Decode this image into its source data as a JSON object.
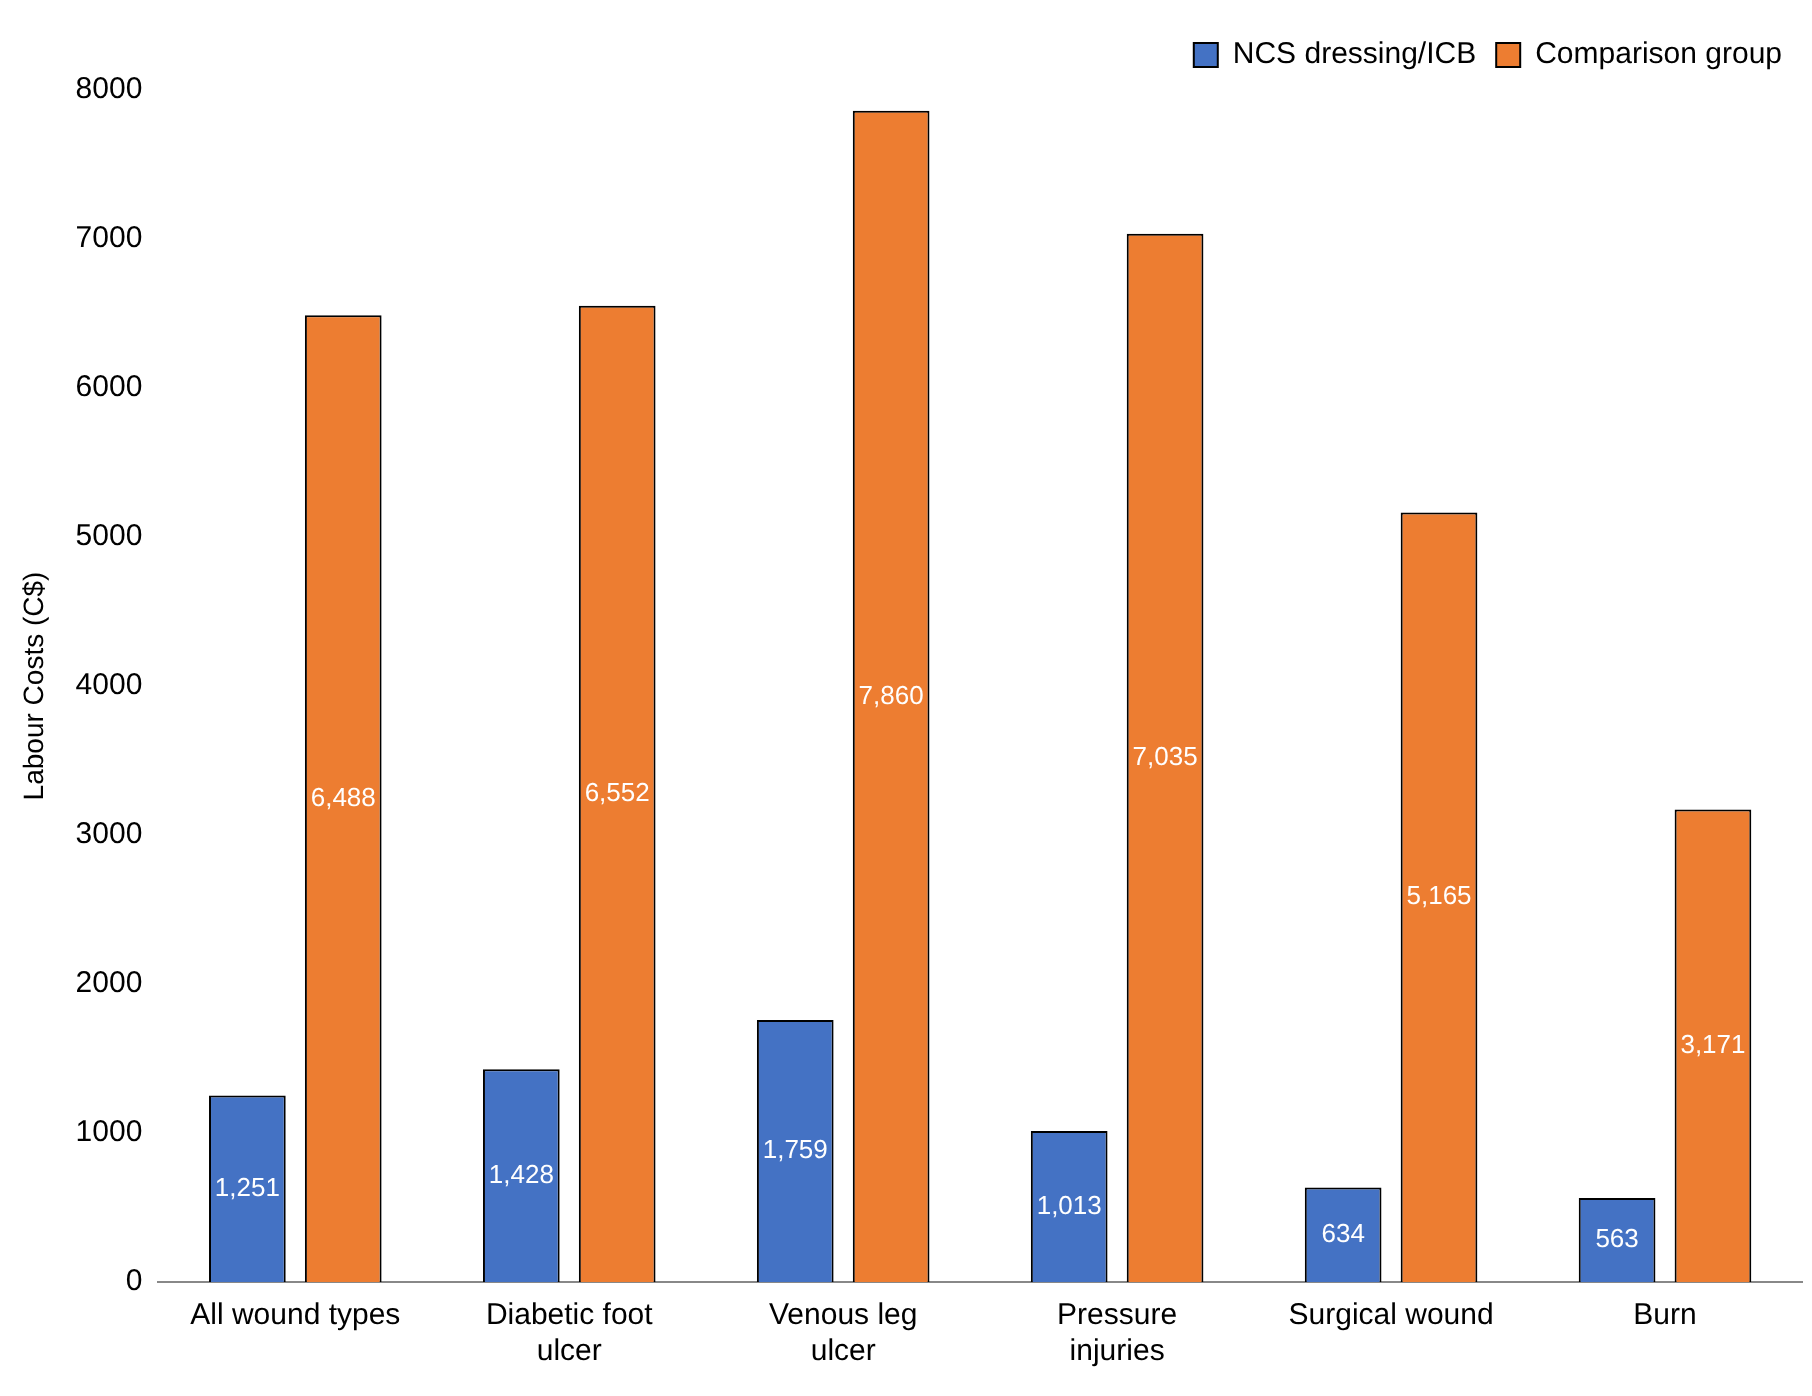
{
  "chart_data": {
    "type": "bar",
    "ylabel": "Labour Costs (C$)",
    "categories": [
      "All wound types",
      "Diabetic foot ulcer",
      "Venous leg ulcer",
      "Pressure injuries",
      "Surgical wound",
      "Burn"
    ],
    "series": [
      {
        "name": "NCS dressing/ICB",
        "color": "#4472c4",
        "values": [
          1251,
          1428,
          1759,
          1013,
          634,
          563
        ],
        "value_labels": [
          "1,251",
          "1,428",
          "1,759",
          "1,013",
          "634",
          "563"
        ]
      },
      {
        "name": "Comparison group",
        "color": "#ed7d31",
        "values": [
          6488,
          6552,
          7860,
          7035,
          5165,
          3171
        ],
        "value_labels": [
          "6,488",
          "6,552",
          "7,860",
          "7,035",
          "5,165",
          "3,171"
        ]
      }
    ],
    "ylim": [
      0,
      8000
    ],
    "yticks": [
      0,
      1000,
      2000,
      3000,
      4000,
      5000,
      6000,
      7000,
      8000
    ],
    "grid": false,
    "legend": "top right"
  }
}
